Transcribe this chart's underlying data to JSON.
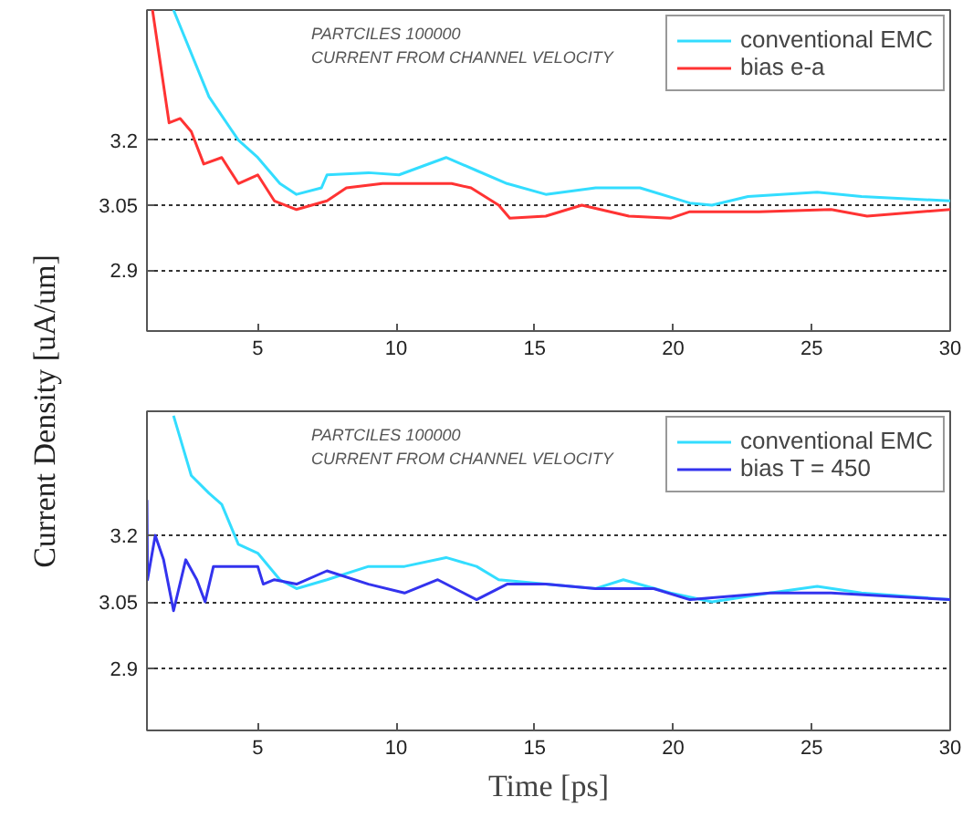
{
  "chart_data": [
    {
      "type": "line",
      "ylabel": "Current Density [uA/um]",
      "annotations": [
        "PARTCILES 100000",
        "CURRENT FROM CHANNEL VELOCITY"
      ],
      "legend": "top right",
      "grid": "y",
      "xlim": [
        1,
        30
      ],
      "ylim": [
        2.76,
        3.5
      ],
      "xticks": [
        5,
        10,
        15,
        20,
        25,
        30
      ],
      "yticks": [
        2.9,
        3.05,
        3.2
      ],
      "series": [
        {
          "name": "conventional EMC",
          "color": "#33ddff",
          "x": [
            1.96,
            3.24,
            4.3,
            5,
            5.8,
            6.4,
            7.3,
            7.5,
            9,
            10.1,
            11.8,
            12.9,
            14,
            15.4,
            17.2,
            18.8,
            20.6,
            21.4,
            22.7,
            25.2,
            26.8,
            30
          ],
          "values": [
            3.5,
            3.3,
            3.2,
            3.16,
            3.1,
            3.075,
            3.09,
            3.12,
            3.125,
            3.12,
            3.16,
            3.13,
            3.1,
            3.075,
            3.09,
            3.09,
            3.055,
            3.05,
            3.07,
            3.08,
            3.07,
            3.06
          ]
        },
        {
          "name": "bias e-a",
          "color": "#ff3333",
          "x": [
            1.2,
            1.8,
            2.2,
            2.6,
            3.05,
            3.7,
            4.3,
            5,
            5.6,
            6.4,
            7.5,
            8.2,
            9.5,
            12,
            12.7,
            13.7,
            14.1,
            15.4,
            16.7,
            18.4,
            19.9,
            20.6,
            23.1,
            25.7,
            27,
            30
          ],
          "values": [
            3.5,
            3.24,
            3.25,
            3.22,
            3.145,
            3.16,
            3.1,
            3.12,
            3.06,
            3.04,
            3.06,
            3.09,
            3.1,
            3.1,
            3.09,
            3.05,
            3.02,
            3.025,
            3.05,
            3.025,
            3.02,
            3.035,
            3.035,
            3.04,
            3.025,
            3.04
          ]
        }
      ]
    },
    {
      "type": "line",
      "xlabel": "Time [ps]",
      "annotations": [
        "PARTCILES 100000",
        "CURRENT FROM CHANNEL VELOCITY"
      ],
      "legend": "top right",
      "grid": "y",
      "xlim": [
        1,
        30
      ],
      "ylim": [
        2.76,
        3.48
      ],
      "xticks": [
        5,
        10,
        15,
        20,
        25,
        30
      ],
      "yticks": [
        2.9,
        3.05,
        3.2
      ],
      "series": [
        {
          "name": "conventional EMC",
          "color": "#33ddff",
          "x": [
            1.96,
            2.6,
            3.24,
            3.7,
            4.3,
            5,
            5.8,
            6.4,
            7.5,
            9,
            10.3,
            11.8,
            12.9,
            13.7,
            15.4,
            17.2,
            18.2,
            19.9,
            21.4,
            23.5,
            25.2,
            26.8,
            30
          ],
          "values": [
            3.47,
            3.335,
            3.295,
            3.27,
            3.18,
            3.16,
            3.1,
            3.08,
            3.1,
            3.13,
            3.13,
            3.15,
            3.13,
            3.1,
            3.09,
            3.08,
            3.1,
            3.07,
            3.05,
            3.07,
            3.085,
            3.07,
            3.055
          ]
        },
        {
          "name": "bias T = 450",
          "color": "#3333ee",
          "x": [
            1.0,
            1.02,
            1.3,
            1.6,
            1.96,
            2.4,
            2.8,
            3.1,
            3.4,
            4.3,
            5,
            5.2,
            5.6,
            6.4,
            7.5,
            9,
            10.3,
            11.5,
            12.9,
            14,
            15.4,
            17.2,
            19.3,
            20.6,
            23.5,
            25.7,
            30
          ],
          "values": [
            3.28,
            3.1,
            3.2,
            3.145,
            3.03,
            3.145,
            3.1,
            3.05,
            3.13,
            3.13,
            3.13,
            3.09,
            3.1,
            3.09,
            3.12,
            3.09,
            3.07,
            3.1,
            3.055,
            3.09,
            3.09,
            3.08,
            3.08,
            3.055,
            3.07,
            3.07,
            3.055
          ]
        }
      ]
    }
  ]
}
